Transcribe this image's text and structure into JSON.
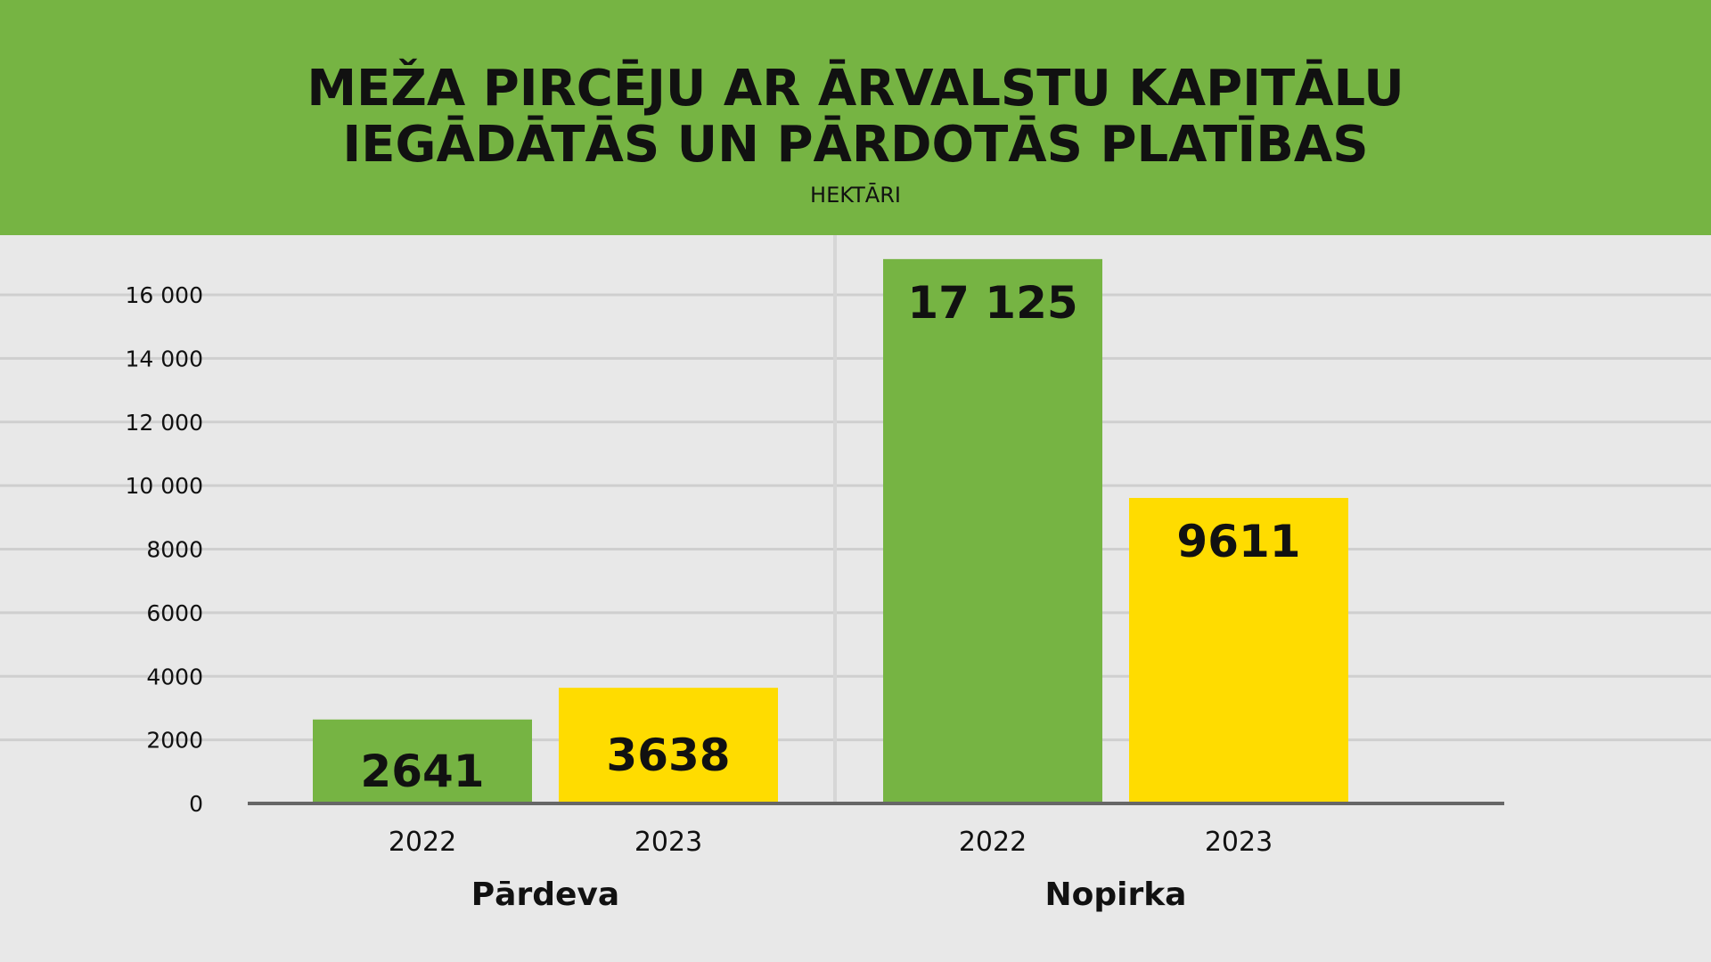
{
  "header": {
    "title_line_1": "MEŽA PIRCĒJU AR ĀRVALSTU KAPITĀLU",
    "title_line_2": "IEGĀDĀTĀS UN PĀRDOTĀS  PLATĪBAS",
    "subtitle": "HEKTĀRI"
  },
  "colors": {
    "header_bg": "#76b443",
    "background": "#e8e8e8",
    "series_2022": "#76b443",
    "series_2023": "#ffdc00",
    "gridline": "#cfcfcf",
    "baseline": "#666666",
    "text": "#111111"
  },
  "chart_data": {
    "type": "bar",
    "title": "MEŽA PIRCĒJU AR ĀRVALSTU KAPITĀLU IEGĀDĀTĀS UN PĀRDOTĀS  PLATĪBAS",
    "subtitle": "HEKTĀRI",
    "groups": [
      {
        "name": "Pārdeva",
        "bars": [
          {
            "year": "2022",
            "value": 2641,
            "label": "2641",
            "color": "#76b443"
          },
          {
            "year": "2023",
            "value": 3638,
            "label": "3638",
            "color": "#ffdc00"
          }
        ]
      },
      {
        "name": "Nopirka",
        "bars": [
          {
            "year": "2022",
            "value": 17125,
            "label": "17 125",
            "color": "#76b443"
          },
          {
            "year": "2023",
            "value": 9611,
            "label": "9611",
            "color": "#ffdc00"
          }
        ]
      }
    ],
    "yticks": [
      {
        "value": 0,
        "label": "0"
      },
      {
        "value": 2000,
        "label": "2000"
      },
      {
        "value": 4000,
        "label": "4000"
      },
      {
        "value": 6000,
        "label": "6000"
      },
      {
        "value": 8000,
        "label": "8000"
      },
      {
        "value": 10000,
        "label": "10 000"
      },
      {
        "value": 12000,
        "label": "12 000"
      },
      {
        "value": 14000,
        "label": "14 000"
      },
      {
        "value": 16000,
        "label": "16 000"
      }
    ],
    "ylim": [
      0,
      17125
    ],
    "grid": true,
    "legend": "none"
  }
}
